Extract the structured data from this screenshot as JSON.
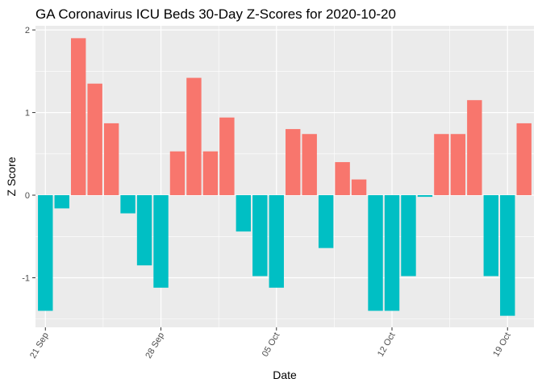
{
  "chart_data": {
    "type": "bar",
    "title": "GA Coronavirus ICU Beds 30-Day Z-Scores for 2020-10-20",
    "xlabel": "Date",
    "ylabel": "Z Score",
    "dates": [
      "2020-09-21",
      "2020-09-22",
      "2020-09-23",
      "2020-09-24",
      "2020-09-25",
      "2020-09-26",
      "2020-09-27",
      "2020-09-28",
      "2020-09-29",
      "2020-09-30",
      "2020-10-01",
      "2020-10-02",
      "2020-10-03",
      "2020-10-04",
      "2020-10-05",
      "2020-10-06",
      "2020-10-07",
      "2020-10-08",
      "2020-10-09",
      "2020-10-10",
      "2020-10-11",
      "2020-10-12",
      "2020-10-13",
      "2020-10-14",
      "2020-10-15",
      "2020-10-16",
      "2020-10-17",
      "2020-10-18",
      "2020-10-19",
      "2020-10-20"
    ],
    "values": [
      -1.4,
      -0.16,
      1.9,
      1.35,
      0.87,
      -0.22,
      -0.85,
      -1.12,
      0.53,
      1.42,
      0.53,
      0.94,
      -0.44,
      -0.98,
      -1.12,
      0.8,
      0.74,
      -0.64,
      0.4,
      0.19,
      -1.4,
      -1.4,
      -0.98,
      -0.02,
      0.74,
      0.74,
      1.15,
      -0.98,
      -1.46,
      0.87
    ],
    "ylim": [
      -1.6,
      2.05
    ],
    "y_ticks": [
      -1,
      0,
      1,
      2
    ],
    "x_ticks": [
      {
        "date": "2020-09-21",
        "label": "21 Sep"
      },
      {
        "date": "2020-09-28",
        "label": "28 Sep"
      },
      {
        "date": "2020-10-05",
        "label": "05 Oct"
      },
      {
        "date": "2020-10-12",
        "label": "12 Oct"
      },
      {
        "date": "2020-10-19",
        "label": "19 Oct"
      }
    ],
    "positive_color": "#F8766D",
    "negative_color": "#00BFC4",
    "panel_color": "#EBEBEB",
    "grid": true,
    "legend": "none"
  }
}
